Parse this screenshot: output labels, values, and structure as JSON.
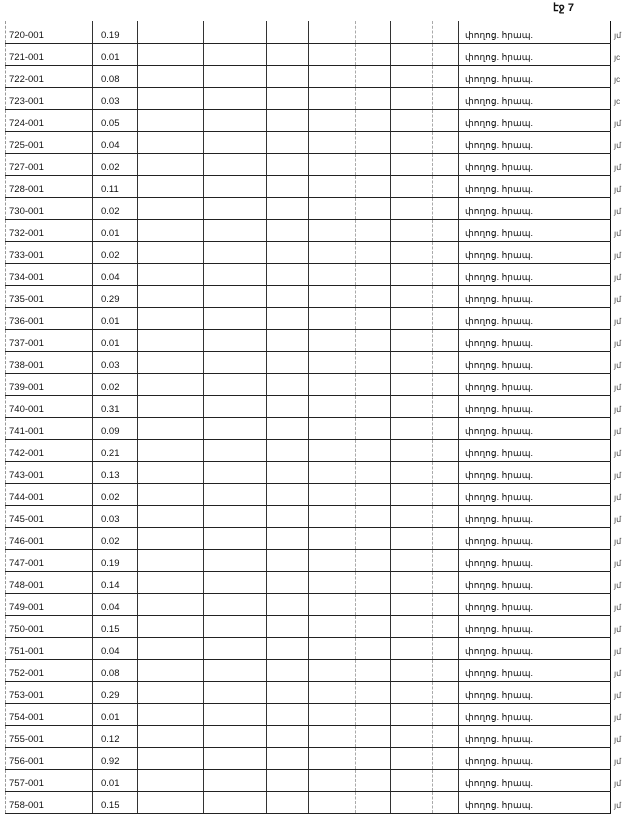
{
  "page_number": "էջ 7",
  "rows": [
    {
      "code": "720-001",
      "value": "0.19",
      "type": "փողոց. հրապ.",
      "edge": "յմ"
    },
    {
      "code": "721-001",
      "value": "0.01",
      "type": "փողոց. հրապ.",
      "edge": "յc"
    },
    {
      "code": "722-001",
      "value": "0.08",
      "type": "փողոց. հրապ.",
      "edge": "յc"
    },
    {
      "code": "723-001",
      "value": "0.03",
      "type": "փողոց. հրապ.",
      "edge": "յc"
    },
    {
      "code": "724-001",
      "value": "0.05",
      "type": "փողոց. հրապ.",
      "edge": "յմ"
    },
    {
      "code": "725-001",
      "value": "0.04",
      "type": "փողոց. հրապ.",
      "edge": "յմ"
    },
    {
      "code": "727-001",
      "value": "0.02",
      "type": "փողոց. հրապ.",
      "edge": "յմ"
    },
    {
      "code": "728-001",
      "value": "0.11",
      "type": "փողոց. հրապ.",
      "edge": "յմ"
    },
    {
      "code": "730-001",
      "value": "0.02",
      "type": "փողոց. հրապ.",
      "edge": "յմ"
    },
    {
      "code": "732-001",
      "value": "0.01",
      "type": "փողոց. հրապ.",
      "edge": "յմ"
    },
    {
      "code": "733-001",
      "value": "0.02",
      "type": "փողոց. հրապ.",
      "edge": "յմ"
    },
    {
      "code": "734-001",
      "value": "0.04",
      "type": "փողոց. հրապ.",
      "edge": "յմ"
    },
    {
      "code": "735-001",
      "value": "0.29",
      "type": "փողոց. հրապ.",
      "edge": "յմ"
    },
    {
      "code": "736-001",
      "value": "0.01",
      "type": "փողոց. հրապ.",
      "edge": "յմ"
    },
    {
      "code": "737-001",
      "value": "0.01",
      "type": "փողոց. հրապ.",
      "edge": "յմ"
    },
    {
      "code": "738-001",
      "value": "0.03",
      "type": "փողոց. հրապ.",
      "edge": "յմ"
    },
    {
      "code": "739-001",
      "value": "0.02",
      "type": "փողոց. հրապ.",
      "edge": "յմ"
    },
    {
      "code": "740-001",
      "value": "0.31",
      "type": "փողոց. հրապ.",
      "edge": "յմ"
    },
    {
      "code": "741-001",
      "value": "0.09",
      "type": "փողոց. հրապ.",
      "edge": "յմ"
    },
    {
      "code": "742-001",
      "value": "0.21",
      "type": "փողոց. հրապ.",
      "edge": "յմ"
    },
    {
      "code": "743-001",
      "value": "0.13",
      "type": "փողոց. հրապ.",
      "edge": "յմ"
    },
    {
      "code": "744-001",
      "value": "0.02",
      "type": "փողոց. հրապ.",
      "edge": "յմ"
    },
    {
      "code": "745-001",
      "value": "0.03",
      "type": "փողոց. հրապ.",
      "edge": "յմ"
    },
    {
      "code": "746-001",
      "value": "0.02",
      "type": "փողոց. հրապ.",
      "edge": "յմ"
    },
    {
      "code": "747-001",
      "value": "0.19",
      "type": "փողոց. հրապ.",
      "edge": "յմ"
    },
    {
      "code": "748-001",
      "value": "0.14",
      "type": "փողոց. հրապ.",
      "edge": "յմ"
    },
    {
      "code": "749-001",
      "value": "0.04",
      "type": "փողոց. հրապ.",
      "edge": "յմ"
    },
    {
      "code": "750-001",
      "value": "0.15",
      "type": "փողոց. հրապ.",
      "edge": "յմ"
    },
    {
      "code": "751-001",
      "value": "0.04",
      "type": "փողոց. հրապ.",
      "edge": "յմ"
    },
    {
      "code": "752-001",
      "value": "0.08",
      "type": "փողոց. հրապ.",
      "edge": "յմ"
    },
    {
      "code": "753-001",
      "value": "0.29",
      "type": "փողոց. հրապ.",
      "edge": "յմ"
    },
    {
      "code": "754-001",
      "value": "0.01",
      "type": "փողոց. հրապ.",
      "edge": "յմ"
    },
    {
      "code": "755-001",
      "value": "0.12",
      "type": "փողոց. հրապ.",
      "edge": "յմ"
    },
    {
      "code": "756-001",
      "value": "0.92",
      "type": "փողոց. հրապ.",
      "edge": "յմ"
    },
    {
      "code": "757-001",
      "value": "0.01",
      "type": "փողոց. հրապ.",
      "edge": "յմ"
    },
    {
      "code": "758-001",
      "value": "0.15",
      "type": "փողոց. հրապ.",
      "edge": "յմ"
    }
  ]
}
